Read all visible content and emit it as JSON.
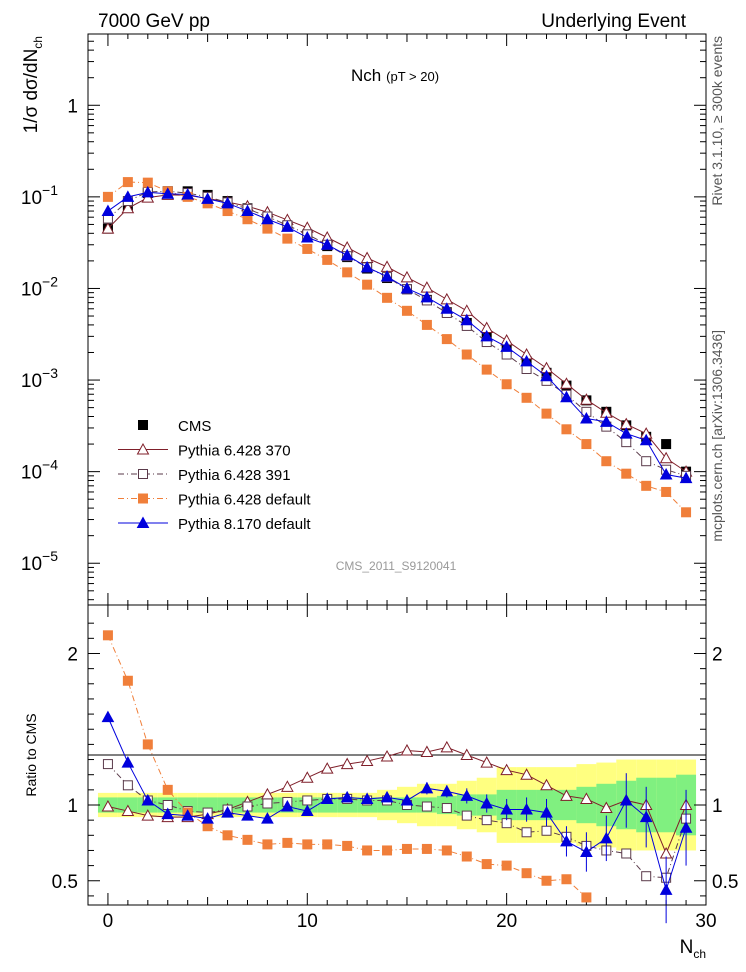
{
  "header": {
    "left": "7000 GeV pp",
    "right": "Underlying Event"
  },
  "side": {
    "rivet": "Rivet 3.1.10, ≥ 300k events",
    "mcplots": "mcplots.cern.ch [arXiv:1306.3436]"
  },
  "chart_data": [
    {
      "panel": "main",
      "type": "scatter",
      "title": "Nch",
      "title_sub": "(pT > 20)",
      "watermark": "CMS_2011_S9120041",
      "xlabel": "N",
      "xlabel_sub": "ch",
      "ylabel": "1/σ dσ/dN",
      "ylabel_sub": "ch",
      "yscale": "log",
      "xlim": [
        -1,
        30
      ],
      "ylim": [
        3.5e-06,
        6
      ],
      "ytick_labels": [
        {
          "value": 1e-05,
          "base": "10",
          "exp": "−5"
        },
        {
          "value": 0.0001,
          "base": "10",
          "exp": "−4"
        },
        {
          "value": 0.001,
          "base": "10",
          "exp": "−3"
        },
        {
          "value": 0.01,
          "base": "10",
          "exp": "−2"
        },
        {
          "value": 0.1,
          "base": "10",
          "exp": "−1"
        },
        {
          "value": 1,
          "base": "1",
          "exp": ""
        }
      ],
      "legend_position": "bottom-left",
      "series": [
        {
          "name": "CMS",
          "marker": "square-filled",
          "color": "#000000",
          "x": [
            0,
            1,
            2,
            3,
            4,
            5,
            6,
            7,
            8,
            9,
            10,
            11,
            12,
            13,
            14,
            15,
            16,
            17,
            18,
            19,
            20,
            21,
            22,
            23,
            24,
            25,
            26,
            27,
            28,
            29
          ],
          "y": [
            0.045,
            0.08,
            0.11,
            0.115,
            0.115,
            0.105,
            0.09,
            0.075,
            0.06,
            0.048,
            0.038,
            0.029,
            0.022,
            0.0165,
            0.013,
            0.0098,
            0.0075,
            0.0055,
            0.0042,
            0.0029,
            0.0022,
            0.0016,
            0.0012,
            0.00087,
            0.0006,
            0.00045,
            0.00032,
            0.00024,
            0.0002,
            0.0001
          ]
        },
        {
          "name": "Pythia 6.428 370",
          "marker": "triangle-open",
          "color": "#7f1f2a",
          "line": "solid",
          "x": [
            0,
            1,
            2,
            3,
            4,
            5,
            6,
            7,
            8,
            9,
            10,
            11,
            12,
            13,
            14,
            15,
            16,
            17,
            18,
            19,
            20,
            21,
            22,
            23,
            24,
            25,
            26,
            27,
            28,
            29
          ],
          "y": [
            0.045,
            0.075,
            0.098,
            0.105,
            0.104,
            0.096,
            0.088,
            0.079,
            0.068,
            0.056,
            0.046,
            0.036,
            0.028,
            0.0215,
            0.0172,
            0.0132,
            0.0102,
            0.0076,
            0.0057,
            0.0037,
            0.0027,
            0.0019,
            0.00135,
            0.00091,
            0.00061,
            0.00044,
            0.00033,
            0.00026,
            0.00014,
            0.0001
          ]
        },
        {
          "name": "Pythia 6.428 391",
          "marker": "square-open",
          "color": "#5a3a4a",
          "line": "dash-dot",
          "x": [
            0,
            1,
            2,
            3,
            4,
            5,
            6,
            7,
            8,
            9,
            10,
            11,
            12,
            13,
            14,
            15,
            16,
            17,
            18,
            19,
            20,
            21,
            22,
            23,
            24,
            25,
            26,
            27,
            28,
            29
          ],
          "y": [
            0.058,
            0.09,
            0.113,
            0.115,
            0.11,
            0.1,
            0.087,
            0.074,
            0.061,
            0.049,
            0.039,
            0.03,
            0.0225,
            0.017,
            0.0133,
            0.0098,
            0.0074,
            0.0054,
            0.0039,
            0.0026,
            0.0019,
            0.00132,
            0.00098,
            0.00069,
            0.00045,
            0.00031,
            0.00021,
            0.00013,
            0.000105,
            9e-05
          ]
        },
        {
          "name": "Pythia 6.428 default",
          "marker": "square-filled",
          "color": "#f07f3a",
          "line": "dash-dot",
          "x": [
            0,
            1,
            2,
            3,
            4,
            5,
            6,
            7,
            8,
            9,
            10,
            11,
            12,
            13,
            14,
            15,
            16,
            17,
            18,
            19,
            20,
            21,
            22,
            23,
            24,
            25,
            26,
            27,
            28,
            29
          ],
          "y": [
            0.1,
            0.145,
            0.143,
            0.115,
            0.1,
            0.085,
            0.07,
            0.057,
            0.045,
            0.035,
            0.027,
            0.0205,
            0.015,
            0.011,
            0.0079,
            0.0057,
            0.004,
            0.0028,
            0.0019,
            0.0013,
            0.0009,
            0.00064,
            0.00043,
            0.00029,
            0.0002,
            0.00013,
            9.5e-05,
            7e-05,
            6e-05,
            3.6e-05
          ]
        },
        {
          "name": "Pythia 8.170 default",
          "marker": "triangle-filled",
          "color": "#0000dd",
          "line": "solid",
          "x": [
            0,
            1,
            2,
            3,
            4,
            5,
            6,
            7,
            8,
            9,
            10,
            11,
            12,
            13,
            14,
            15,
            16,
            17,
            18,
            19,
            20,
            21,
            22,
            23,
            24,
            25,
            26,
            27,
            28,
            29
          ],
          "y": [
            0.07,
            0.1,
            0.112,
            0.108,
            0.106,
            0.095,
            0.085,
            0.07,
            0.057,
            0.047,
            0.036,
            0.03,
            0.023,
            0.017,
            0.0135,
            0.01,
            0.008,
            0.006,
            0.0045,
            0.003,
            0.0023,
            0.0016,
            0.0011,
            0.00065,
            0.00038,
            0.00035,
            0.00026,
            0.00022,
            9.3e-05,
            8.5e-05
          ]
        }
      ]
    },
    {
      "panel": "ratio",
      "type": "scatter",
      "ylabel": "Ratio to CMS",
      "xlim": [
        -1,
        30
      ],
      "ylim": [
        0.34,
        2.32
      ],
      "xticks": [
        0,
        10,
        20,
        30
      ],
      "yticks": [
        0.5,
        1,
        2
      ],
      "band_inner_halfwidth": [
        0.05,
        0.05,
        0.05,
        0.05,
        0.05,
        0.05,
        0.05,
        0.05,
        0.05,
        0.05,
        0.05,
        0.05,
        0.05,
        0.05,
        0.05,
        0.05,
        0.05,
        0.06,
        0.07,
        0.07,
        0.1,
        0.1,
        0.1,
        0.1,
        0.12,
        0.14,
        0.16,
        0.18,
        0.18,
        0.2
      ],
      "band_outer_halfwidth": [
        0.08,
        0.08,
        0.08,
        0.08,
        0.08,
        0.08,
        0.08,
        0.08,
        0.08,
        0.08,
        0.08,
        0.08,
        0.08,
        0.08,
        0.1,
        0.12,
        0.14,
        0.14,
        0.16,
        0.18,
        0.25,
        0.25,
        0.25,
        0.25,
        0.27,
        0.28,
        0.3,
        0.3,
        0.3,
        0.3
      ],
      "band_inner_color": "#80f080",
      "band_outer_color": "#ffff80",
      "series": [
        {
          "name": "Pythia 6.428 370",
          "marker": "triangle-open",
          "color": "#7f1f2a",
          "line": "solid",
          "x": [
            0,
            1,
            2,
            3,
            4,
            5,
            6,
            7,
            8,
            9,
            10,
            11,
            12,
            13,
            14,
            15,
            16,
            17,
            18,
            19,
            20,
            21,
            22,
            23,
            24,
            25,
            26,
            27,
            28,
            29
          ],
          "y": [
            0.99,
            0.96,
            0.93,
            0.92,
            0.92,
            0.94,
            0.97,
            1.02,
            1.07,
            1.12,
            1.18,
            1.24,
            1.27,
            1.29,
            1.32,
            1.36,
            1.35,
            1.38,
            1.33,
            1.28,
            1.23,
            1.2,
            1.13,
            1.06,
            1.04,
            0.98,
            1.03,
            1.0,
            0.68,
            1.0
          ]
        },
        {
          "name": "Pythia 6.428 391",
          "marker": "square-open",
          "color": "#5a3a4a",
          "line": "dash-dot",
          "x": [
            0,
            1,
            2,
            3,
            4,
            5,
            6,
            7,
            8,
            9,
            10,
            11,
            12,
            13,
            14,
            15,
            16,
            17,
            18,
            19,
            20,
            21,
            22,
            23,
            24,
            25,
            26,
            27,
            28,
            29
          ],
          "y": [
            1.27,
            1.13,
            1.03,
            1.0,
            0.96,
            0.95,
            0.97,
            0.99,
            1.01,
            1.02,
            1.03,
            1.04,
            1.04,
            1.03,
            1.03,
            1.0,
            0.99,
            0.98,
            0.93,
            0.9,
            0.88,
            0.82,
            0.83,
            0.79,
            0.73,
            0.7,
            0.68,
            0.53,
            0.52,
            0.91
          ]
        },
        {
          "name": "Pythia 6.428 default",
          "marker": "square-filled",
          "color": "#f07f3a",
          "line": "dash-dot",
          "x": [
            0,
            1,
            2,
            3,
            4,
            5,
            6,
            7,
            8,
            9,
            10,
            11,
            12,
            13,
            14,
            15,
            16,
            17,
            18,
            19,
            20,
            21,
            22,
            23,
            24
          ],
          "y": [
            2.12,
            1.82,
            1.4,
            1.1,
            0.95,
            0.86,
            0.8,
            0.77,
            0.74,
            0.75,
            0.74,
            0.74,
            0.73,
            0.7,
            0.7,
            0.71,
            0.71,
            0.7,
            0.66,
            0.61,
            0.6,
            0.55,
            0.5,
            0.51,
            0.39
          ]
        },
        {
          "name": "Pythia 8.170 default",
          "marker": "triangle-filled",
          "color": "#0000dd",
          "line": "solid",
          "x": [
            0,
            1,
            2,
            3,
            4,
            5,
            6,
            7,
            8,
            9,
            10,
            11,
            12,
            13,
            14,
            15,
            16,
            17,
            18,
            19,
            20,
            21,
            22,
            23,
            24,
            25,
            26,
            27,
            28,
            29
          ],
          "y": [
            1.58,
            1.28,
            1.03,
            0.94,
            0.93,
            0.91,
            0.95,
            0.93,
            0.91,
            0.99,
            0.96,
            1.04,
            1.05,
            1.04,
            1.05,
            1.03,
            1.11,
            1.09,
            1.06,
            1.01,
            0.97,
            0.97,
            0.95,
            0.76,
            0.69,
            0.78,
            1.03,
            0.92,
            0.44,
            0.85
          ],
          "err": [
            0.02,
            0.02,
            0.02,
            0.02,
            0.02,
            0.02,
            0.02,
            0.02,
            0.02,
            0.02,
            0.02,
            0.02,
            0.02,
            0.03,
            0.03,
            0.03,
            0.04,
            0.04,
            0.05,
            0.06,
            0.07,
            0.08,
            0.09,
            0.1,
            0.13,
            0.15,
            0.18,
            0.2,
            0.22,
            0.25
          ]
        }
      ]
    }
  ]
}
